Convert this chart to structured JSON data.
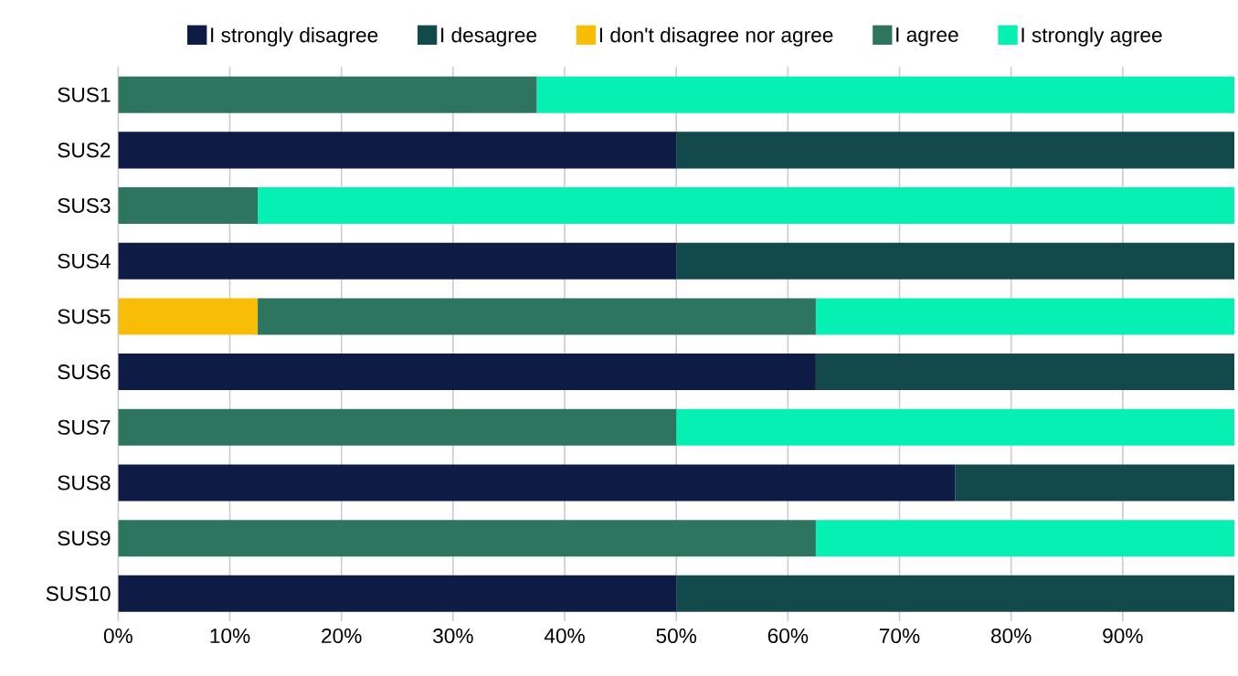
{
  "chart_data": {
    "type": "bar",
    "orientation": "horizontal",
    "stacked": true,
    "grid": "x",
    "legend": "top",
    "categories": [
      "SUS1",
      "SUS2",
      "SUS3",
      "SUS4",
      "SUS5",
      "SUS6",
      "SUS7",
      "SUS8",
      "SUS9",
      "SUS10"
    ],
    "series": [
      {
        "name": "I strongly disagree",
        "color": "#0d1b45",
        "values": [
          0,
          50,
          0,
          50,
          0,
          62.5,
          0,
          75,
          0,
          50
        ]
      },
      {
        "name": "I desagree",
        "color": "#12494a",
        "values": [
          0,
          50,
          0,
          50,
          0,
          37.5,
          0,
          25,
          0,
          50
        ]
      },
      {
        "name": "I don't disagree nor agree",
        "color": "#f7bd06",
        "values": [
          0,
          0,
          0,
          0,
          12.5,
          0,
          0,
          0,
          0,
          0
        ]
      },
      {
        "name": "I agree",
        "color": "#2e7560",
        "values": [
          37.5,
          0,
          12.5,
          0,
          50,
          0,
          50,
          0,
          62.5,
          0
        ]
      },
      {
        "name": "I strongly agree",
        "color": "#06f0b4",
        "values": [
          62.5,
          0,
          87.5,
          0,
          37.5,
          0,
          50,
          0,
          37.5,
          0
        ]
      }
    ],
    "xlim": [
      0,
      100
    ],
    "xticks": [
      {
        "value": 0,
        "label": "0%"
      },
      {
        "value": 10,
        "label": "10%"
      },
      {
        "value": 20,
        "label": "20%"
      },
      {
        "value": 30,
        "label": "30%"
      },
      {
        "value": 40,
        "label": "40%"
      },
      {
        "value": 50,
        "label": "50%"
      },
      {
        "value": 60,
        "label": "60%"
      },
      {
        "value": 70,
        "label": "70%"
      },
      {
        "value": 80,
        "label": "80%"
      },
      {
        "value": 90,
        "label": "90%"
      }
    ]
  }
}
